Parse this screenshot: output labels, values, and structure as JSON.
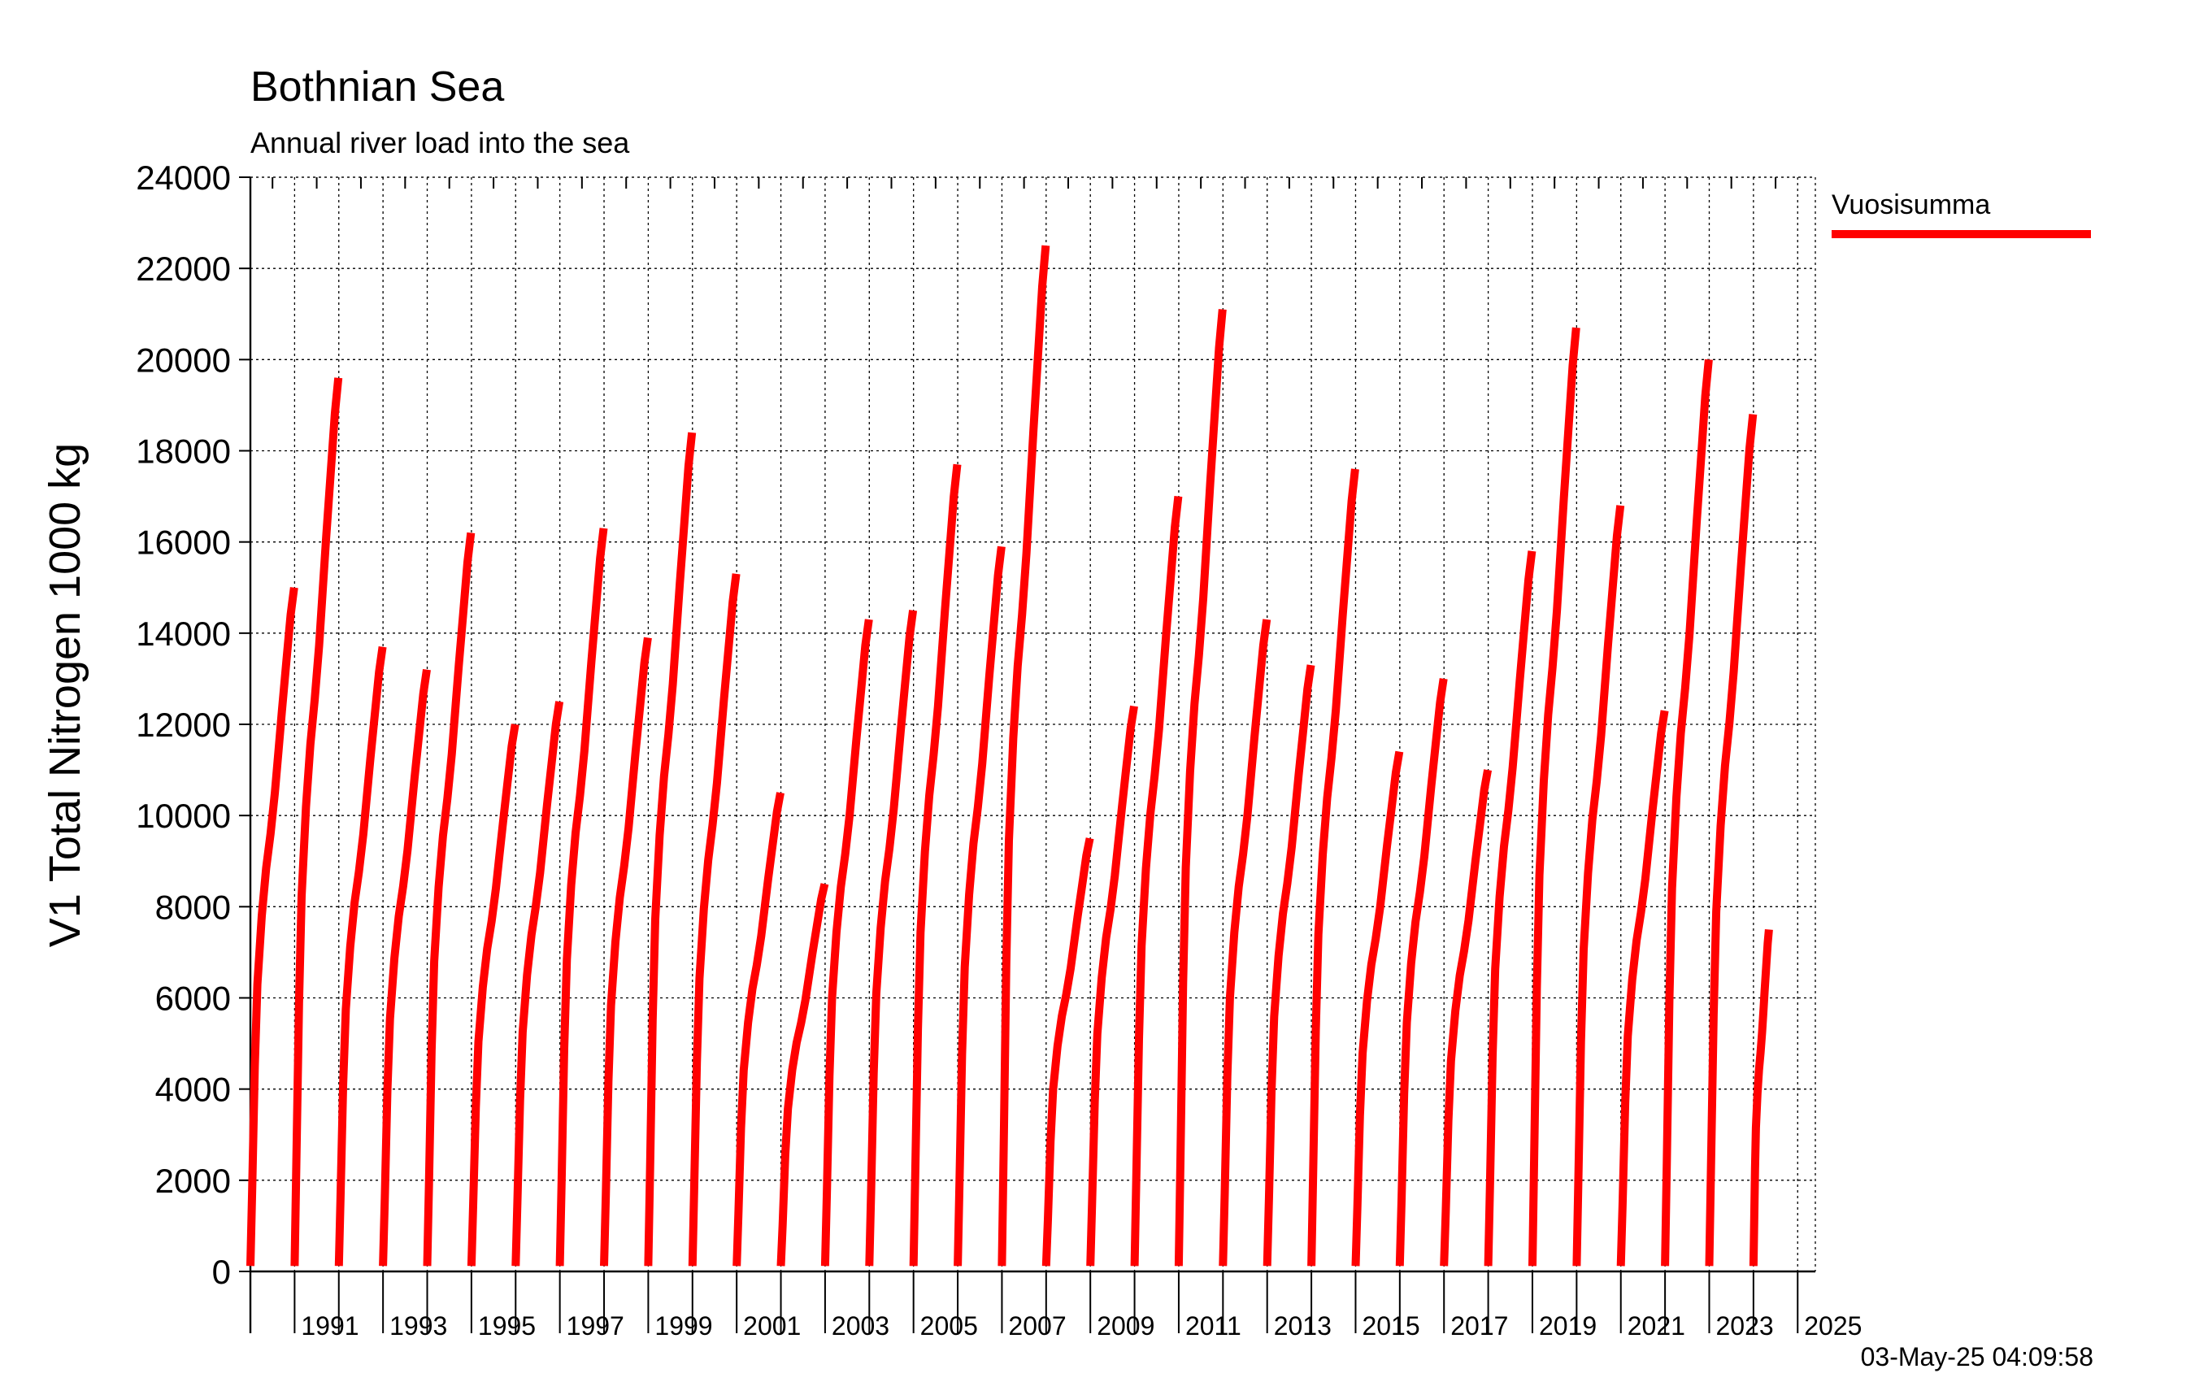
{
  "chart_data": {
    "type": "line",
    "title": "Bothnian Sea",
    "subtitle": "Annual river load into the sea",
    "ylabel": "V1 Total Nitrogen 1000 kg",
    "xlabel": "",
    "timestamp": "03-May-25 04:09:58",
    "ylim": [
      0,
      24000
    ],
    "xlim": [
      1990,
      2025.4
    ],
    "y_ticks": [
      0,
      2000,
      4000,
      6000,
      8000,
      10000,
      12000,
      14000,
      16000,
      18000,
      20000,
      22000,
      24000
    ],
    "x_tick_labels": [
      "1991",
      "1993",
      "1995",
      "1997",
      "1999",
      "2001",
      "2003",
      "2005",
      "2007",
      "2009",
      "2011",
      "2013",
      "2015",
      "2017",
      "2019",
      "2021",
      "2023",
      "2025"
    ],
    "grid": true,
    "legend_position": "top-right",
    "series": [
      {
        "name": "Vuosisumma",
        "color": "#ff0000",
        "annual_totals": [
          {
            "year": 1990,
            "total": 15000
          },
          {
            "year": 1991,
            "total": 19600
          },
          {
            "year": 1992,
            "total": 13700
          },
          {
            "year": 1993,
            "total": 13200
          },
          {
            "year": 1994,
            "total": 16200
          },
          {
            "year": 1995,
            "total": 12000
          },
          {
            "year": 1996,
            "total": 12500
          },
          {
            "year": 1997,
            "total": 16300
          },
          {
            "year": 1998,
            "total": 13900
          },
          {
            "year": 1999,
            "total": 18400
          },
          {
            "year": 2000,
            "total": 15300
          },
          {
            "year": 2001,
            "total": 10500
          },
          {
            "year": 2002,
            "total": 8500
          },
          {
            "year": 2003,
            "total": 14300
          },
          {
            "year": 2004,
            "total": 14500
          },
          {
            "year": 2005,
            "total": 17700
          },
          {
            "year": 2006,
            "total": 15900
          },
          {
            "year": 2007,
            "total": 22500
          },
          {
            "year": 2008,
            "total": 9500
          },
          {
            "year": 2009,
            "total": 12400
          },
          {
            "year": 2010,
            "total": 17000
          },
          {
            "year": 2011,
            "total": 21100
          },
          {
            "year": 2012,
            "total": 14300
          },
          {
            "year": 2013,
            "total": 13300
          },
          {
            "year": 2014,
            "total": 17600
          },
          {
            "year": 2015,
            "total": 11400
          },
          {
            "year": 2016,
            "total": 13000
          },
          {
            "year": 2017,
            "total": 11000
          },
          {
            "year": 2018,
            "total": 15800
          },
          {
            "year": 2019,
            "total": 20700
          },
          {
            "year": 2020,
            "total": 16800
          },
          {
            "year": 2021,
            "total": 12300
          },
          {
            "year": 2022,
            "total": 20000
          },
          {
            "year": 2023,
            "total": 18800
          },
          {
            "year": 2024,
            "total": 7500
          }
        ]
      }
    ]
  }
}
